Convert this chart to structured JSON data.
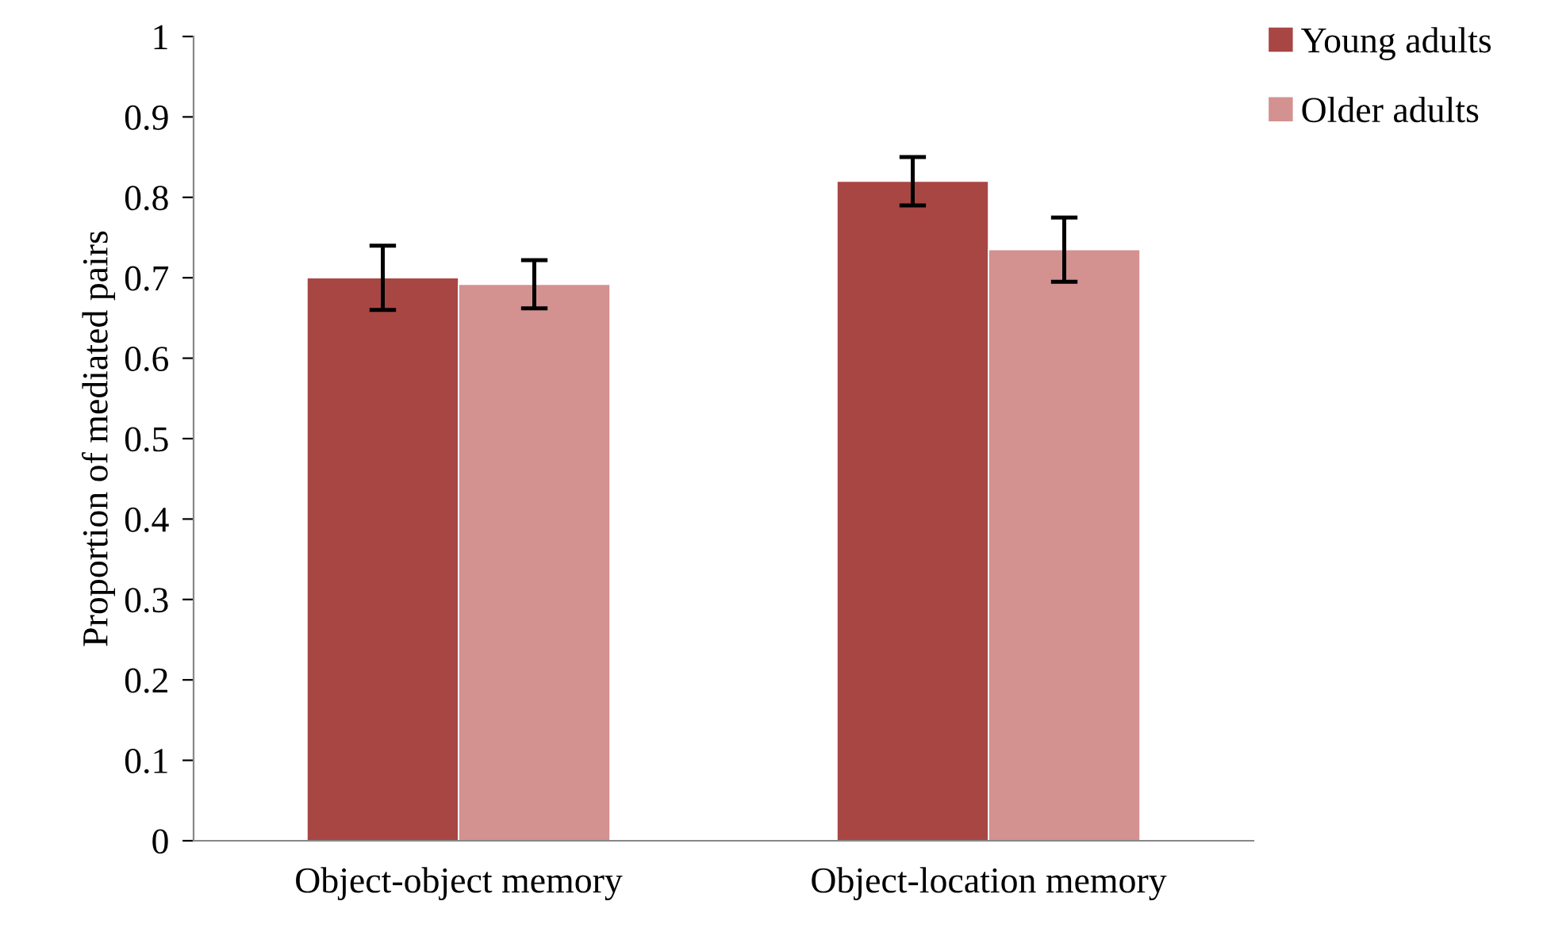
{
  "chart_data": {
    "type": "bar",
    "ylabel": "Proportion of mediated pairs",
    "categories": [
      "Object-object memory",
      "Object-location memory"
    ],
    "series": [
      {
        "name": "Young adults",
        "color": "#a84644",
        "values": [
          0.7,
          0.82
        ],
        "errors": [
          0.04,
          0.03
        ]
      },
      {
        "name": "Older adults",
        "color": "#d39190",
        "values": [
          0.692,
          0.735
        ],
        "errors": [
          0.03,
          0.04
        ]
      }
    ],
    "ylim": [
      0,
      1
    ],
    "yticks": [
      0,
      0.1,
      0.2,
      0.3,
      0.4,
      0.5,
      0.6,
      0.7,
      0.8,
      0.9,
      1
    ],
    "grid": false,
    "legend": "top right"
  }
}
